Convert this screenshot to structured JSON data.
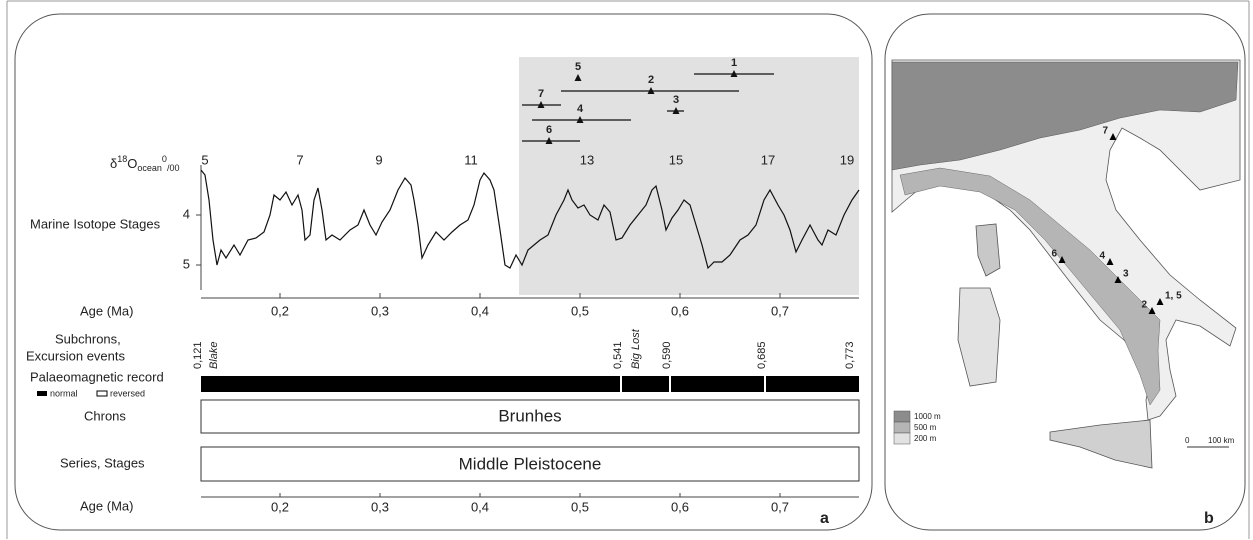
{
  "panels": [
    "a",
    "b"
  ],
  "chart_data": [
    {
      "type": "line",
      "y_title": "Marine Isotope Stages",
      "ylabel": {
        "symbol": "δ",
        "mass": "18",
        "element": "O",
        "subscript": "ocean",
        "unit_top": "0",
        "unit_bottom": "/00"
      },
      "xlabel": "Age (Ma)",
      "xlim": [
        0.121,
        0.779
      ],
      "xticks": [
        {
          "value": 0.2,
          "label": "0,2"
        },
        {
          "value": 0.3,
          "label": "0,3"
        },
        {
          "value": 0.4,
          "label": "0,4"
        },
        {
          "value": 0.5,
          "label": "0,5"
        },
        {
          "value": 0.6,
          "label": "0,6"
        },
        {
          "value": 0.7,
          "label": "0,7"
        }
      ],
      "ylim": [
        3,
        5.5
      ],
      "y_inverted": true,
      "yticks": [
        4,
        5
      ],
      "color": "#111111",
      "highlight": [
        0.439,
        0.779
      ],
      "highlight_color": "#e1e1e1",
      "stage_labels": {
        "x": [
          0.125,
          0.22,
          0.299,
          0.391,
          0.507,
          0.596,
          0.688,
          0.767
        ],
        "labels": [
          "5",
          "7",
          "9",
          "11",
          "13",
          "15",
          "17",
          "19"
        ]
      },
      "x": [
        0.121,
        0.125,
        0.129,
        0.133,
        0.137,
        0.141,
        0.146,
        0.154,
        0.16,
        0.168,
        0.176,
        0.184,
        0.19,
        0.194,
        0.2,
        0.206,
        0.212,
        0.218,
        0.222,
        0.225,
        0.23,
        0.234,
        0.238,
        0.242,
        0.246,
        0.252,
        0.26,
        0.27,
        0.278,
        0.284,
        0.29,
        0.296,
        0.302,
        0.31,
        0.318,
        0.325,
        0.331,
        0.334,
        0.338,
        0.342,
        0.348,
        0.356,
        0.364,
        0.372,
        0.38,
        0.388,
        0.394,
        0.4,
        0.404,
        0.41,
        0.414,
        0.42,
        0.425,
        0.43,
        0.436,
        0.442,
        0.448,
        0.454,
        0.46,
        0.468,
        0.476,
        0.484,
        0.488,
        0.492,
        0.498,
        0.504,
        0.51,
        0.518,
        0.524,
        0.53,
        0.536,
        0.542,
        0.55,
        0.558,
        0.566,
        0.572,
        0.576,
        0.582,
        0.586,
        0.592,
        0.598,
        0.604,
        0.61,
        0.616,
        0.622,
        0.628,
        0.634,
        0.642,
        0.65,
        0.66,
        0.668,
        0.676,
        0.684,
        0.69,
        0.698,
        0.704,
        0.71,
        0.716,
        0.722,
        0.73,
        0.738,
        0.742,
        0.748,
        0.756,
        0.764,
        0.772,
        0.779
      ],
      "values": [
        3.1,
        3.2,
        3.7,
        4.5,
        5.0,
        4.7,
        4.86,
        4.6,
        4.8,
        4.5,
        4.46,
        4.34,
        4.0,
        3.6,
        3.7,
        3.54,
        3.8,
        3.6,
        3.9,
        4.5,
        4.4,
        3.7,
        3.46,
        3.9,
        4.5,
        4.4,
        4.5,
        4.3,
        4.2,
        3.9,
        4.2,
        4.4,
        4.14,
        3.9,
        3.5,
        3.26,
        3.4,
        3.7,
        4.2,
        4.86,
        4.6,
        4.34,
        4.5,
        4.34,
        4.2,
        4.1,
        3.8,
        3.3,
        3.16,
        3.3,
        3.5,
        4.3,
        5.0,
        5.06,
        4.8,
        5.0,
        4.7,
        4.6,
        4.5,
        4.4,
        4.0,
        3.7,
        3.5,
        3.7,
        3.86,
        3.8,
        4.0,
        4.1,
        3.8,
        3.94,
        4.5,
        4.46,
        4.2,
        4.0,
        3.8,
        3.5,
        3.42,
        3.9,
        4.3,
        4.06,
        3.9,
        3.7,
        3.8,
        4.2,
        4.6,
        5.06,
        4.94,
        4.94,
        4.8,
        4.5,
        4.4,
        4.2,
        3.7,
        3.5,
        3.8,
        4.0,
        4.3,
        4.74,
        4.5,
        4.2,
        4.5,
        4.6,
        4.3,
        4.4,
        4.0,
        3.7,
        3.5
      ]
    },
    {
      "type": "range",
      "color": "#111111",
      "sites": [
        {
          "label": "1",
          "age": 0.654,
          "range": [
            0.614,
            0.694
          ]
        },
        {
          "label": "2",
          "age": 0.571,
          "range": [
            0.481,
            0.659
          ]
        },
        {
          "label": "3",
          "age": 0.596,
          "range": [
            0.587,
            0.604
          ]
        },
        {
          "label": "4",
          "age": 0.5,
          "range": [
            0.452,
            0.551
          ]
        },
        {
          "label": "5",
          "age": 0.498
        },
        {
          "label": "6",
          "age": 0.469,
          "range": [
            0.442,
            0.5
          ]
        },
        {
          "label": "7",
          "age": 0.461,
          "range": [
            0.442,
            0.481
          ]
        }
      ]
    },
    {
      "type": "timescale",
      "xlim": [
        0.121,
        0.779
      ],
      "subchrons_label": [
        "Subchrons,",
        "Excursion events"
      ],
      "boundaries": [
        {
          "value": 0.121,
          "label": "0,121"
        },
        {
          "value": 0.541,
          "label": "0,541"
        },
        {
          "value": 0.59,
          "label": "0,590"
        },
        {
          "value": 0.685,
          "label": "0,685"
        },
        {
          "value": 0.773,
          "label": "0,773"
        }
      ],
      "excursions": [
        {
          "name": "Blake",
          "age": 0.134
        },
        {
          "name": "Big Lost",
          "age": 0.556
        }
      ],
      "record_label": "Palaeomagnetic record",
      "record_legend": [
        "normal",
        "reversed"
      ],
      "chrons_label": "Chrons",
      "chron": "Brunhes",
      "stages_label": "Series, Stages",
      "stage_name": "Middle Pleistocene",
      "xlabel": "Age (Ma)",
      "xticks": [
        {
          "value": 0.2,
          "label": "0,2"
        },
        {
          "value": 0.3,
          "label": "0,3"
        },
        {
          "value": 0.4,
          "label": "0,4"
        },
        {
          "value": 0.5,
          "label": "0,5"
        },
        {
          "value": 0.6,
          "label": "0,6"
        },
        {
          "value": 0.7,
          "label": "0,7"
        }
      ]
    }
  ],
  "map": {
    "sites": [
      {
        "label": "7"
      },
      {
        "label": "6"
      },
      {
        "label": "4"
      },
      {
        "label": "3"
      },
      {
        "label": "2"
      },
      {
        "label": "1, 5"
      }
    ],
    "legend": [
      "1000 m",
      "500 m",
      "200 m"
    ],
    "scale": [
      "0",
      "100 km"
    ]
  }
}
